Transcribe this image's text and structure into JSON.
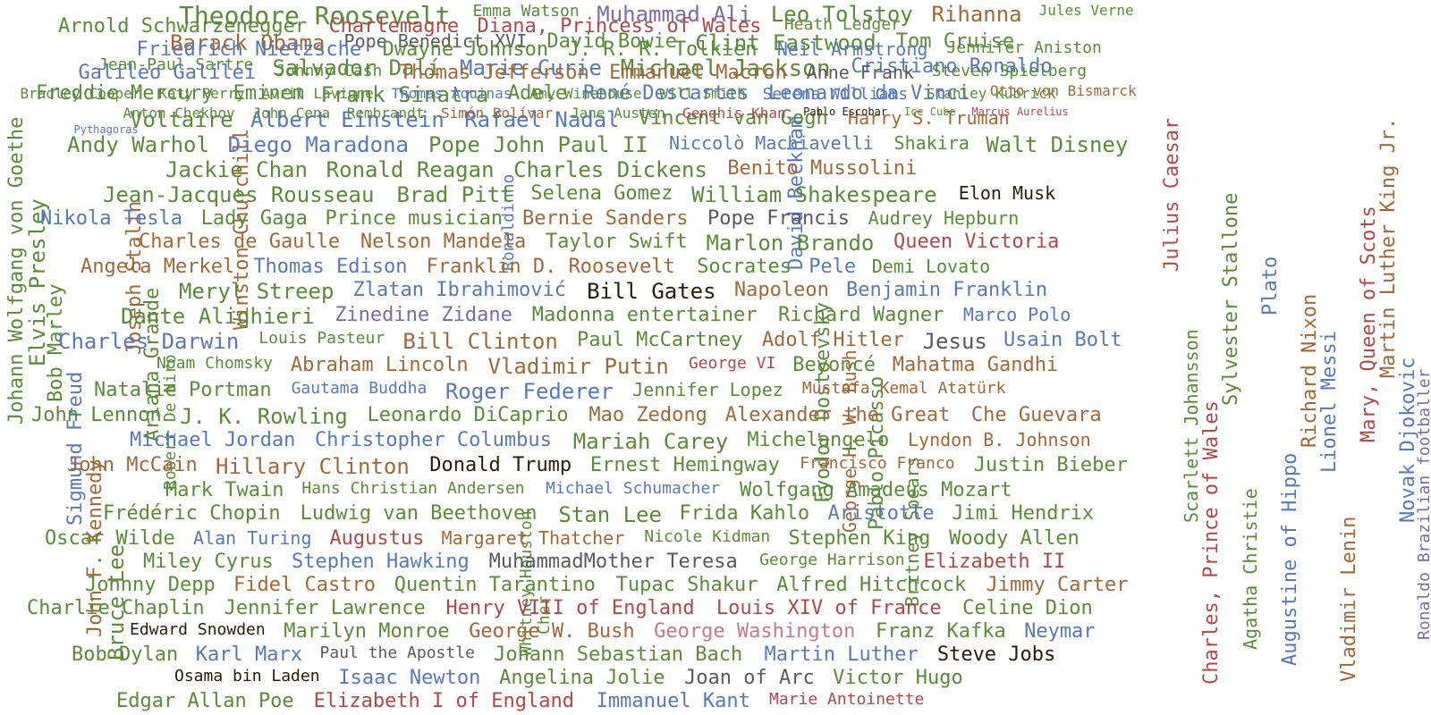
{
  "palette": {
    "green": "#5a8a3a",
    "blue": "#5878b8",
    "brown": "#a0683a",
    "purple": "#7a6aa8",
    "red": "#b04848",
    "gray": "#5a5a5a",
    "black": "#2a1a0a",
    "pink": "#c47a8a"
  },
  "words": [
    {
      "text": "Theodore Roosevelt",
      "color": "green",
      "size": 28
    },
    {
      "text": "Emma Watson",
      "color": "green",
      "size": 18
    },
    {
      "text": "Muhammad Ali",
      "color": "purple",
      "size": 24
    },
    {
      "text": "Leo Tolstoy",
      "color": "green",
      "size": 24
    },
    {
      "text": "Rihanna",
      "color": "brown",
      "size": 24
    },
    {
      "text": "Jules Verne",
      "color": "green",
      "size": 16
    },
    {
      "text": "Barack Obama",
      "color": "brown",
      "size": 24
    },
    {
      "text": "Pope Benedict XVI",
      "color": "gray",
      "size": 20
    },
    {
      "text": "David Bowie",
      "color": "green",
      "size": 22
    },
    {
      "text": "Clint Eastwood",
      "color": "green",
      "size": 24
    },
    {
      "text": "Tom Cruise",
      "color": "green",
      "size": 22
    },
    {
      "text": "Jean-Paul Sartre",
      "color": "green",
      "size": 18
    },
    {
      "text": "Salvador Dalí",
      "color": "green",
      "size": 24
    },
    {
      "text": "Marie Curie",
      "color": "blue",
      "size": 24
    },
    {
      "text": "Michael Jackson",
      "color": "green",
      "size": 26
    },
    {
      "text": "Cristiano Ronaldo",
      "color": "blue",
      "size": 22
    },
    {
      "text": "Freddie Mercury",
      "color": "green",
      "size": 22
    },
    {
      "text": "Eminem",
      "color": "green",
      "size": 22
    },
    {
      "text": "Frank Sinatra",
      "color": "green",
      "size": 24
    },
    {
      "text": "Adele",
      "color": "green",
      "size": 22
    },
    {
      "text": "René Descartes",
      "color": "blue",
      "size": 22
    },
    {
      "text": "Leonardo da Vinci",
      "color": "blue",
      "size": 22
    },
    {
      "text": "Otto von Bismarck",
      "color": "brown",
      "size": 16
    },
    {
      "text": "Voltaire",
      "color": "green",
      "size": 24
    },
    {
      "text": "Albert Einstein",
      "color": "blue",
      "size": 24
    },
    {
      "text": "Rafael Nadal",
      "color": "blue",
      "size": 24
    },
    {
      "text": "Vincent van Gogh",
      "color": "green",
      "size": 22
    },
    {
      "text": "Harry S. Truman",
      "color": "brown",
      "size": 20
    },
    {
      "text": "Andy Warhol",
      "color": "green",
      "size": 24
    },
    {
      "text": "Diego Maradona",
      "color": "blue",
      "size": 24
    },
    {
      "text": "Pope John Paul II",
      "color": "green",
      "size": 24
    },
    {
      "text": "Niccolò Machiavelli",
      "color": "blue",
      "size": 20
    },
    {
      "text": "Shakira",
      "color": "green",
      "size": 20
    },
    {
      "text": "Walt Disney",
      "color": "green",
      "size": 24
    },
    {
      "text": "Jackie Chan",
      "color": "green",
      "size": 24
    },
    {
      "text": "Ronald Reagan",
      "color": "green",
      "size": 24
    },
    {
      "text": "Charles Dickens",
      "color": "green",
      "size": 24
    },
    {
      "text": "Benito Mussolini",
      "color": "brown",
      "size": 22
    },
    {
      "text": "Jean-Jacques Rousseau",
      "color": "green",
      "size": 24
    },
    {
      "text": "Brad Pitt",
      "color": "green",
      "size": 24
    },
    {
      "text": "Selena Gomez",
      "color": "green",
      "size": 22
    },
    {
      "text": "William Shakespeare",
      "color": "green",
      "size": 24
    },
    {
      "text": "Elon Musk",
      "color": "black",
      "size": 20
    },
    {
      "text": "Nikola Tesla",
      "color": "blue",
      "size": 22
    },
    {
      "text": "Lady Gaga",
      "color": "green",
      "size": 22
    },
    {
      "text": "Prince musician",
      "color": "green",
      "size": 22
    },
    {
      "text": "Bernie Sanders",
      "color": "brown",
      "size": 22
    },
    {
      "text": "Pope Francis",
      "color": "gray",
      "size": 22
    },
    {
      "text": "Audrey Hepburn",
      "color": "green",
      "size": 20
    },
    {
      "text": "Charles de Gaulle",
      "color": "brown",
      "size": 22
    },
    {
      "text": "Nelson Mandela",
      "color": "brown",
      "size": 22
    },
    {
      "text": "Taylor Swift",
      "color": "green",
      "size": 22
    },
    {
      "text": "Marlon Brando",
      "color": "green",
      "size": 24
    },
    {
      "text": "Queen Victoria",
      "color": "red",
      "size": 22
    },
    {
      "text": "Angela Merkel",
      "color": "brown",
      "size": 22
    },
    {
      "text": "Thomas Edison",
      "color": "blue",
      "size": 22
    },
    {
      "text": "Franklin D. Roosevelt",
      "color": "brown",
      "size": 22
    },
    {
      "text": "Socrates",
      "color": "green",
      "size": 22
    },
    {
      "text": "Pele",
      "color": "blue",
      "size": 22
    },
    {
      "text": "Demi Lovato",
      "color": "green",
      "size": 20
    },
    {
      "text": "Meryl Streep",
      "color": "green",
      "size": 24
    },
    {
      "text": "Zlatan Ibrahimović",
      "color": "blue",
      "size": 22
    },
    {
      "text": "Bill Gates",
      "color": "black",
      "size": 24
    },
    {
      "text": "Napoleon",
      "color": "brown",
      "size": 22
    },
    {
      "text": "Benjamin Franklin",
      "color": "blue",
      "size": 22
    },
    {
      "text": "Dante Alighieri",
      "color": "green",
      "size": 24
    },
    {
      "text": "Zinedine Zidane",
      "color": "purple",
      "size": 22
    },
    {
      "text": "Madonna entertainer",
      "color": "green",
      "size": 22
    },
    {
      "text": "Richard Wagner",
      "color": "green",
      "size": 22
    },
    {
      "text": "Marco Polo",
      "color": "blue",
      "size": 20
    },
    {
      "text": "Charles Darwin",
      "color": "blue",
      "size": 24
    },
    {
      "text": "Louis Pasteur",
      "color": "green",
      "size": 18
    },
    {
      "text": "Bill Clinton",
      "color": "brown",
      "size": 24
    },
    {
      "text": "Paul McCartney",
      "color": "green",
      "size": 22
    },
    {
      "text": "Adolf Hitler",
      "color": "brown",
      "size": 22
    },
    {
      "text": "Jesus",
      "color": "gray",
      "size": 24
    },
    {
      "text": "Usain Bolt",
      "color": "blue",
      "size": 22
    },
    {
      "text": "Noam Chomsky",
      "color": "green",
      "size": 18
    },
    {
      "text": "Abraham Lincoln",
      "color": "brown",
      "size": 22
    },
    {
      "text": "Vladimir Putin",
      "color": "brown",
      "size": 24
    },
    {
      "text": "George VI",
      "color": "red",
      "size": 18
    },
    {
      "text": "Beyoncé",
      "color": "green",
      "size": 22
    },
    {
      "text": "Mahatma Gandhi",
      "color": "brown",
      "size": 22
    },
    {
      "text": "Natalie Portman",
      "color": "green",
      "size": 22
    },
    {
      "text": "Gautama Buddha",
      "color": "blue",
      "size": 18
    },
    {
      "text": "Roger Federer",
      "color": "blue",
      "size": 24
    },
    {
      "text": "Jennifer Lopez",
      "color": "green",
      "size": 20
    },
    {
      "text": "Mustafa Kemal Atatürk",
      "color": "brown",
      "size": 18
    },
    {
      "text": "John Lennon",
      "color": "green",
      "size": 22
    },
    {
      "text": "J. K. Rowling",
      "color": "green",
      "size": 24
    },
    {
      "text": "Leonardo DiCaprio",
      "color": "green",
      "size": 22
    },
    {
      "text": "Mao Zedong",
      "color": "brown",
      "size": 22
    },
    {
      "text": "Alexander the Great",
      "color": "brown",
      "size": 22
    },
    {
      "text": "Che Guevara",
      "color": "brown",
      "size": 22
    },
    {
      "text": "Michael Jordan",
      "color": "blue",
      "size": 22
    },
    {
      "text": "Christopher Columbus",
      "color": "blue",
      "size": 22
    },
    {
      "text": "Mariah Carey",
      "color": "green",
      "size": 24
    },
    {
      "text": "Michelangelo",
      "color": "green",
      "size": 22
    },
    {
      "text": "Lyndon B. Johnson",
      "color": "brown",
      "size": 20
    },
    {
      "text": "John McCain",
      "color": "brown",
      "size": 22
    },
    {
      "text": "Hillary Clinton",
      "color": "brown",
      "size": 24
    },
    {
      "text": "Donald Trump",
      "color": "black",
      "size": 22
    },
    {
      "text": "Ernest Hemingway",
      "color": "green",
      "size": 22
    },
    {
      "text": "Francisco Franco",
      "color": "brown",
      "size": 18
    },
    {
      "text": "Justin Bieber",
      "color": "green",
      "size": 22
    },
    {
      "text": "Mark Twain",
      "color": "green",
      "size": 22
    },
    {
      "text": "Hans Christian Andersen",
      "color": "green",
      "size": 18
    },
    {
      "text": "Michael Schumacher",
      "color": "blue",
      "size": 18
    },
    {
      "text": "Wolfgang Amadeus Mozart",
      "color": "green",
      "size": 22
    },
    {
      "text": "Frédéric Chopin",
      "color": "green",
      "size": 22
    },
    {
      "text": "Ludwig van Beethoven",
      "color": "green",
      "size": 22
    },
    {
      "text": "Stan Lee",
      "color": "green",
      "size": 24
    },
    {
      "text": "Frida Kahlo",
      "color": "green",
      "size": 22
    },
    {
      "text": "Aristotle",
      "color": "blue",
      "size": 22
    },
    {
      "text": "Jimi Hendrix",
      "color": "green",
      "size": 22
    },
    {
      "text": "Oscar Wilde",
      "color": "green",
      "size": 22
    },
    {
      "text": "Alan Turing",
      "color": "blue",
      "size": 20
    },
    {
      "text": "Augustus",
      "color": "red",
      "size": 22
    },
    {
      "text": "Margaret Thatcher",
      "color": "brown",
      "size": 20
    },
    {
      "text": "Nicole Kidman",
      "color": "green",
      "size": 18
    },
    {
      "text": "Stephen King",
      "color": "green",
      "size": 22
    },
    {
      "text": "Woody Allen",
      "color": "green",
      "size": 22
    },
    {
      "text": "Miley Cyrus",
      "color": "green",
      "size": 22
    },
    {
      "text": "Stephen Hawking",
      "color": "blue",
      "size": 22
    },
    {
      "text": "MuhammadMother Teresa",
      "color": "gray",
      "size": 22
    },
    {
      "text": "George Harrison",
      "color": "green",
      "size": 18
    },
    {
      "text": "Elizabeth II",
      "color": "red",
      "size": 22
    },
    {
      "text": "Johnny Depp",
      "color": "green",
      "size": 22
    },
    {
      "text": "Fidel Castro",
      "color": "brown",
      "size": 22
    },
    {
      "text": "Quentin Tarantino",
      "color": "green",
      "size": 22
    },
    {
      "text": "Tupac Shakur",
      "color": "green",
      "size": 22
    },
    {
      "text": "Alfred Hitchcock",
      "color": "green",
      "size": 22
    },
    {
      "text": "Jimmy Carter",
      "color": "brown",
      "size": 22
    },
    {
      "text": "Charlie Chaplin",
      "color": "green",
      "size": 22
    },
    {
      "text": "Jennifer Lawrence",
      "color": "green",
      "size": 22
    },
    {
      "text": "Henry VIII of England",
      "color": "red",
      "size": 22
    },
    {
      "text": "Louis XIV of France",
      "color": "red",
      "size": 22
    },
    {
      "text": "Celine Dion",
      "color": "green",
      "size": 22
    },
    {
      "text": "Edward Snowden",
      "color": "black",
      "size": 18
    },
    {
      "text": "Marilyn Monroe",
      "color": "green",
      "size": 22
    },
    {
      "text": "George W. Bush",
      "color": "brown",
      "size": 22
    },
    {
      "text": "George Washington",
      "color": "pink",
      "size": 22
    },
    {
      "text": "Franz Kafka",
      "color": "green",
      "size": 22
    },
    {
      "text": "Neymar",
      "color": "blue",
      "size": 22
    },
    {
      "text": "Bob Dylan",
      "color": "green",
      "size": 22
    },
    {
      "text": "Karl Marx",
      "color": "blue",
      "size": 22
    },
    {
      "text": "Paul the Apostle",
      "color": "gray",
      "size": 18
    },
    {
      "text": "Johann Sebastian Bach",
      "color": "green",
      "size": 22
    },
    {
      "text": "Martin Luther",
      "color": "blue",
      "size": 22
    },
    {
      "text": "Steve Jobs",
      "color": "black",
      "size": 22
    },
    {
      "text": "Osama bin Laden",
      "color": "black",
      "size": 18
    },
    {
      "text": "Isaac Newton",
      "color": "blue",
      "size": 22
    },
    {
      "text": "Angelina Jolie",
      "color": "green",
      "size": 22
    },
    {
      "text": "Joan of Arc",
      "color": "gray",
      "size": 22
    },
    {
      "text": "Victor Hugo",
      "color": "green",
      "size": 22
    },
    {
      "text": "Edgar Allan Poe",
      "color": "green",
      "size": 22
    },
    {
      "text": "Elizabeth I of England",
      "color": "red",
      "size": 22
    },
    {
      "text": "Immanuel Kant",
      "color": "blue",
      "size": 22
    },
    {
      "text": "Marie Antoinette",
      "color": "red",
      "size": 18
    },
    {
      "text": "Arnold Schwarzenegger",
      "color": "green",
      "size": 22
    },
    {
      "text": "Charlemagne",
      "color": "red",
      "size": 22
    },
    {
      "text": "Diana, Princess of Wales",
      "color": "red",
      "size": 22
    },
    {
      "text": "Heath Ledger",
      "color": "green",
      "size": 18
    },
    {
      "text": "Friedrich Nietzsche",
      "color": "blue",
      "size": 22
    },
    {
      "text": "Dwayne Johnson",
      "color": "green",
      "size": 22
    },
    {
      "text": "J. R. R. Tolkien",
      "color": "green",
      "size": 22
    },
    {
      "text": "Neil Armstrong",
      "color": "blue",
      "size": 20
    },
    {
      "text": "Jennifer Aniston",
      "color": "green",
      "size": 18
    },
    {
      "text": "Galileo Galilei",
      "color": "blue",
      "size": 22
    },
    {
      "text": "Johnny Cash",
      "color": "green",
      "size": 18
    },
    {
      "text": "Thomas Jefferson",
      "color": "brown",
      "size": 22
    },
    {
      "text": "Emmanuel Macron",
      "color": "brown",
      "size": 22
    },
    {
      "text": "Anne Frank",
      "color": "gray",
      "size": 20
    },
    {
      "text": "Steven Spielberg",
      "color": "green",
      "size": 18
    },
    {
      "text": "Bradley Cooper",
      "color": "green",
      "size": 16
    },
    {
      "text": "Katy Perry",
      "color": "green",
      "size": 16
    },
    {
      "text": "Avril Lavigne",
      "color": "green",
      "size": 16
    },
    {
      "text": "Thomas Aquinas",
      "color": "blue",
      "size": 16
    },
    {
      "text": "Amy Winehouse",
      "color": "green",
      "size": 16
    },
    {
      "text": "Will Smith",
      "color": "green",
      "size": 16
    },
    {
      "text": "Serena Williams",
      "color": "blue",
      "size": 18
    },
    {
      "text": "Stanley Kubrick",
      "color": "green",
      "size": 16
    },
    {
      "text": "Anton Chekhov",
      "color": "green",
      "size": 16
    },
    {
      "text": "John Cena",
      "color": "green",
      "size": 16
    },
    {
      "text": "Rembrandt",
      "color": "green",
      "size": 16
    },
    {
      "text": "Simón Bolívar",
      "color": "brown",
      "size": 16
    },
    {
      "text": "Jane Austen",
      "color": "green",
      "size": 16
    },
    {
      "text": "Genghis Khan",
      "color": "red",
      "size": 16
    },
    {
      "text": "Pablo Escobar",
      "color": "black",
      "size": 12
    },
    {
      "text": "Ice Cube",
      "color": "green",
      "size": 12
    },
    {
      "text": "Marcus Aurelius",
      "color": "red",
      "size": 12
    },
    {
      "text": "Pythagoras",
      "color": "blue",
      "size": 12
    }
  ],
  "verticals": [
    {
      "text": "Johann Wolfgang von Goethe",
      "color": "green",
      "size": 22
    },
    {
      "text": "Elvis Presley",
      "color": "green",
      "size": 24
    },
    {
      "text": "Bob Marley",
      "color": "green",
      "size": 22
    },
    {
      "text": "Sigmund Freud",
      "color": "blue",
      "size": 22
    },
    {
      "text": "John F. Kennedy",
      "color": "brown",
      "size": 22
    },
    {
      "text": "Bruce Lee",
      "color": "green",
      "size": 24
    },
    {
      "text": "Joseph Stalin",
      "color": "brown",
      "size": 22
    },
    {
      "text": "Ariana Grande",
      "color": "green",
      "size": 22
    },
    {
      "text": "Robert De Niro",
      "color": "green",
      "size": 18
    },
    {
      "text": "Winston Churchill",
      "color": "brown",
      "size": 22
    },
    {
      "text": "David Beckham",
      "color": "blue",
      "size": 22
    },
    {
      "text": "Fyodor Dostoevsky",
      "color": "green",
      "size": 22
    },
    {
      "text": "George H. W. Bush",
      "color": "brown",
      "size": 20
    },
    {
      "text": "Pablo Picasso",
      "color": "green",
      "size": 22
    },
    {
      "text": "Britney Spears",
      "color": "green",
      "size": 20
    },
    {
      "text": "Julius Caesar",
      "color": "red",
      "size": 22
    },
    {
      "text": "Scarlett Johansson",
      "color": "green",
      "size": 20
    },
    {
      "text": "Charles, Prince of Wales",
      "color": "red",
      "size": 22
    },
    {
      "text": "Sylvester Stallone",
      "color": "green",
      "size": 22
    },
    {
      "text": "Agatha Christie",
      "color": "green",
      "size": 20
    },
    {
      "text": "Plato",
      "color": "blue",
      "size": 22
    },
    {
      "text": "Augustine of Hippo",
      "color": "blue",
      "size": 22
    },
    {
      "text": "Richard Nixon",
      "color": "brown",
      "size": 22
    },
    {
      "text": "Lionel Messi",
      "color": "blue",
      "size": 22
    },
    {
      "text": "Vladimir Lenin",
      "color": "brown",
      "size": 22
    },
    {
      "text": "Mary, Queen of Scots",
      "color": "red",
      "size": 22
    },
    {
      "text": "Martin Luther King Jr.",
      "color": "brown",
      "size": 22
    },
    {
      "text": "Novak Djokovic",
      "color": "blue",
      "size": 22
    },
    {
      "text": "Ronaldo Brazilian footballer",
      "color": "purple",
      "size": 18
    },
    {
      "text": "Ronaldinho",
      "color": "blue",
      "size": 18
    },
    {
      "text": "Whitney Houston",
      "color": "green",
      "size": 18
    },
    {
      "text": "Cher",
      "color": "green",
      "size": 18
    }
  ]
}
